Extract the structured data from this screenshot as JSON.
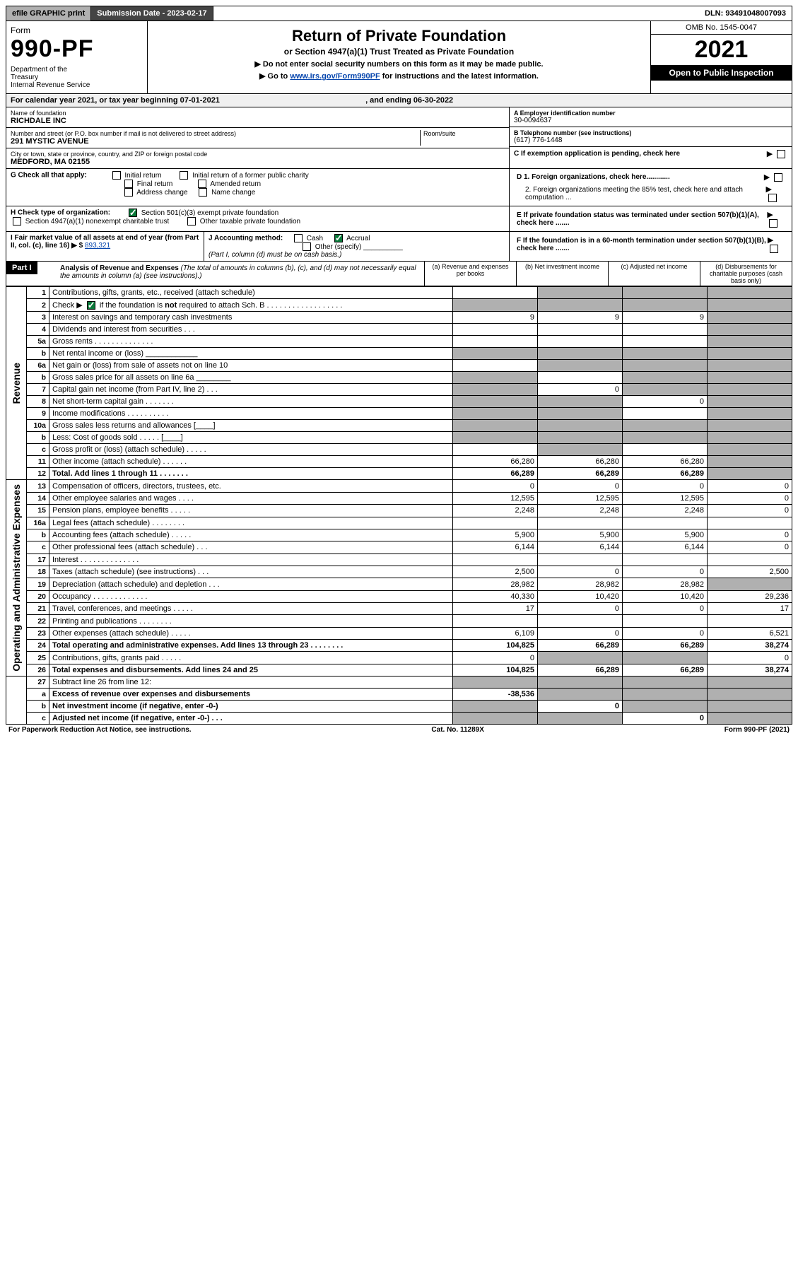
{
  "topbar": {
    "efile": "efile GRAPHIC print",
    "subdate_label": "Submission Date - 2023-02-17",
    "dln": "DLN: 93491048007093"
  },
  "header": {
    "form_word": "Form",
    "form_num": "990-PF",
    "dept": "Department of the Treasury\nInternal Revenue Service",
    "title": "Return of Private Foundation",
    "subtitle": "or Section 4947(a)(1) Trust Treated as Private Foundation",
    "instr1": "▶ Do not enter social security numbers on this form as it may be made public.",
    "instr2_pre": "▶ Go to ",
    "instr2_link": "www.irs.gov/Form990PF",
    "instr2_post": " for instructions and the latest information.",
    "omb": "OMB No. 1545-0047",
    "year": "2021",
    "open": "Open to Public Inspection"
  },
  "caly": {
    "text_pre": "For calendar year 2021, or tax year beginning ",
    "begin": "07-01-2021",
    "text_mid": " , and ending ",
    "end": "06-30-2022"
  },
  "info": {
    "name_lbl": "Name of foundation",
    "name_val": "RICHDALE INC",
    "addr_lbl": "Number and street (or P.O. box number if mail is not delivered to street address)",
    "addr_val": "291 MYSTIC AVENUE",
    "room_lbl": "Room/suite",
    "city_lbl": "City or town, state or province, country, and ZIP or foreign postal code",
    "city_val": "MEDFORD, MA  02155",
    "ein_lbl": "A Employer identification number",
    "ein_val": "30-0094637",
    "tel_lbl": "B Telephone number (see instructions)",
    "tel_val": "(617) 776-1448",
    "c_lbl": "C If exemption application is pending, check here",
    "d1_lbl": "D 1. Foreign organizations, check here............",
    "d2_lbl": "2. Foreign organizations meeting the 85% test, check here and attach computation ...",
    "e_lbl": "E  If private foundation status was terminated under section 507(b)(1)(A), check here .......",
    "f_lbl": "F  If the foundation is in a 60-month termination under section 507(b)(1)(B), check here .......",
    "g_lbl": "G Check all that apply:",
    "g_opts": [
      "Initial return",
      "Initial return of a former public charity",
      "Final return",
      "Amended return",
      "Address change",
      "Name change"
    ],
    "h_lbl": "H Check type of organization:",
    "h_opt1": "Section 501(c)(3) exempt private foundation",
    "h_opt2": "Section 4947(a)(1) nonexempt charitable trust",
    "h_opt3": "Other taxable private foundation",
    "i_lbl": "I Fair market value of all assets at end of year (from Part II, col. (c), line 16) ▶ $",
    "i_val": "893,321",
    "j_lbl": "J Accounting method:",
    "j_cash": "Cash",
    "j_accrual": "Accrual",
    "j_other": "Other (specify)",
    "j_note": "(Part I, column (d) must be on cash basis.)"
  },
  "part1": {
    "label": "Part I",
    "title": "Analysis of Revenue and Expenses",
    "title_note": " (The total of amounts in columns (b), (c), and (d) may not necessarily equal the amounts in column (a) (see instructions).)",
    "col_a": "(a) Revenue and expenses per books",
    "col_b": "(b) Net investment income",
    "col_c": "(c) Adjusted net income",
    "col_d": "(d) Disbursements for charitable purposes (cash basis only)",
    "revenue_label": "Revenue",
    "expenses_label": "Operating and Administrative Expenses"
  },
  "rows": [
    {
      "n": "1",
      "d": "Contributions, gifts, grants, etc., received (attach schedule)",
      "a": "",
      "b": "shade",
      "c": "shade",
      "dd": "shade"
    },
    {
      "n": "2",
      "d": "Check ▶ ☑ if the foundation is not required to attach Sch. B   . . . . . . . . . . . . . . . . . .",
      "a": "shade",
      "b": "shade",
      "c": "shade",
      "dd": "shade",
      "checked": true
    },
    {
      "n": "3",
      "d": "Interest on savings and temporary cash investments",
      "a": "9",
      "b": "9",
      "c": "9",
      "dd": "shade"
    },
    {
      "n": "4",
      "d": "Dividends and interest from securities   . . .",
      "a": "",
      "b": "",
      "c": "",
      "dd": "shade"
    },
    {
      "n": "5a",
      "d": "Gross rents   . . . . . . . . . . . . . .",
      "a": "",
      "b": "",
      "c": "",
      "dd": "shade"
    },
    {
      "n": "b",
      "d": "Net rental income or (loss)  ____________",
      "a": "shade",
      "b": "shade",
      "c": "shade",
      "dd": "shade"
    },
    {
      "n": "6a",
      "d": "Net gain or (loss) from sale of assets not on line 10",
      "a": "",
      "b": "shade",
      "c": "shade",
      "dd": "shade"
    },
    {
      "n": "b",
      "d": "Gross sales price for all assets on line 6a ________",
      "a": "shade",
      "b": "",
      "c": "shade",
      "dd": "shade"
    },
    {
      "n": "7",
      "d": "Capital gain net income (from Part IV, line 2)   . . .",
      "a": "shade",
      "b": "0",
      "c": "shade",
      "dd": "shade"
    },
    {
      "n": "8",
      "d": "Net short-term capital gain   . . . . . . .",
      "a": "shade",
      "b": "shade",
      "c": "0",
      "dd": "shade"
    },
    {
      "n": "9",
      "d": "Income modifications . . . . . . . . . .",
      "a": "shade",
      "b": "shade",
      "c": "",
      "dd": "shade"
    },
    {
      "n": "10a",
      "d": "Gross sales less returns and allowances  [____]",
      "a": "shade",
      "b": "shade",
      "c": "shade",
      "dd": "shade"
    },
    {
      "n": "b",
      "d": "Less: Cost of goods sold   . . . . .  [____]",
      "a": "shade",
      "b": "shade",
      "c": "shade",
      "dd": "shade"
    },
    {
      "n": "c",
      "d": "Gross profit or (loss) (attach schedule)   . . . . .",
      "a": "",
      "b": "shade",
      "c": "",
      "dd": "shade"
    },
    {
      "n": "11",
      "d": "Other income (attach schedule)   . . . . . .",
      "a": "66,280",
      "b": "66,280",
      "c": "66,280",
      "dd": "shade"
    },
    {
      "n": "12",
      "d": "Total. Add lines 1 through 11   . . . . . . .",
      "a": "66,289",
      "b": "66,289",
      "c": "66,289",
      "dd": "shade",
      "bold": true
    }
  ],
  "exp_rows": [
    {
      "n": "13",
      "d": "Compensation of officers, directors, trustees, etc.",
      "a": "0",
      "b": "0",
      "c": "0",
      "dd": "0"
    },
    {
      "n": "14",
      "d": "Other employee salaries and wages   . . . .",
      "a": "12,595",
      "b": "12,595",
      "c": "12,595",
      "dd": "0"
    },
    {
      "n": "15",
      "d": "Pension plans, employee benefits . . . . .",
      "a": "2,248",
      "b": "2,248",
      "c": "2,248",
      "dd": "0"
    },
    {
      "n": "16a",
      "d": "Legal fees (attach schedule) . . . . . . . .",
      "a": "",
      "b": "",
      "c": "",
      "dd": ""
    },
    {
      "n": "b",
      "d": "Accounting fees (attach schedule) . . . . .",
      "a": "5,900",
      "b": "5,900",
      "c": "5,900",
      "dd": "0"
    },
    {
      "n": "c",
      "d": "Other professional fees (attach schedule)   . . .",
      "a": "6,144",
      "b": "6,144",
      "c": "6,144",
      "dd": "0"
    },
    {
      "n": "17",
      "d": "Interest . . . . . . . . . . . . . .",
      "a": "",
      "b": "",
      "c": "",
      "dd": ""
    },
    {
      "n": "18",
      "d": "Taxes (attach schedule) (see instructions)   . . .",
      "a": "2,500",
      "b": "0",
      "c": "0",
      "dd": "2,500"
    },
    {
      "n": "19",
      "d": "Depreciation (attach schedule) and depletion   . . .",
      "a": "28,982",
      "b": "28,982",
      "c": "28,982",
      "dd": "shade"
    },
    {
      "n": "20",
      "d": "Occupancy . . . . . . . . . . . . .",
      "a": "40,330",
      "b": "10,420",
      "c": "10,420",
      "dd": "29,236"
    },
    {
      "n": "21",
      "d": "Travel, conferences, and meetings . . . . .",
      "a": "17",
      "b": "0",
      "c": "0",
      "dd": "17"
    },
    {
      "n": "22",
      "d": "Printing and publications . . . . . . . .",
      "a": "",
      "b": "",
      "c": "",
      "dd": ""
    },
    {
      "n": "23",
      "d": "Other expenses (attach schedule) . . . . .",
      "a": "6,109",
      "b": "0",
      "c": "0",
      "dd": "6,521"
    },
    {
      "n": "24",
      "d": "Total operating and administrative expenses. Add lines 13 through 23   . . . . . . . .",
      "a": "104,825",
      "b": "66,289",
      "c": "66,289",
      "dd": "38,274",
      "bold": true
    },
    {
      "n": "25",
      "d": "Contributions, gifts, grants paid   . . . . .",
      "a": "0",
      "b": "shade",
      "c": "shade",
      "dd": "0"
    },
    {
      "n": "26",
      "d": "Total expenses and disbursements. Add lines 24 and 25",
      "a": "104,825",
      "b": "66,289",
      "c": "66,289",
      "dd": "38,274",
      "bold": true
    }
  ],
  "final_rows": [
    {
      "n": "27",
      "d": "Subtract line 26 from line 12:",
      "a": "shade",
      "b": "shade",
      "c": "shade",
      "dd": "shade"
    },
    {
      "n": "a",
      "d": "Excess of revenue over expenses and disbursements",
      "a": "-38,536",
      "b": "shade",
      "c": "shade",
      "dd": "shade",
      "bold": true
    },
    {
      "n": "b",
      "d": "Net investment income (if negative, enter -0-)",
      "a": "shade",
      "b": "0",
      "c": "shade",
      "dd": "shade",
      "bold": true
    },
    {
      "n": "c",
      "d": "Adjusted net income (if negative, enter -0-)   . . .",
      "a": "shade",
      "b": "shade",
      "c": "0",
      "dd": "shade",
      "bold": true
    }
  ],
  "footer": {
    "left": "For Paperwork Reduction Act Notice, see instructions.",
    "mid": "Cat. No. 11289X",
    "right": "Form 990-PF (2021)"
  },
  "colors": {
    "header_black": "#000000",
    "grey": "#b0b0b0",
    "darkgrey": "#444444",
    "green_check": "#0a7a3a",
    "link": "#0645ad"
  }
}
